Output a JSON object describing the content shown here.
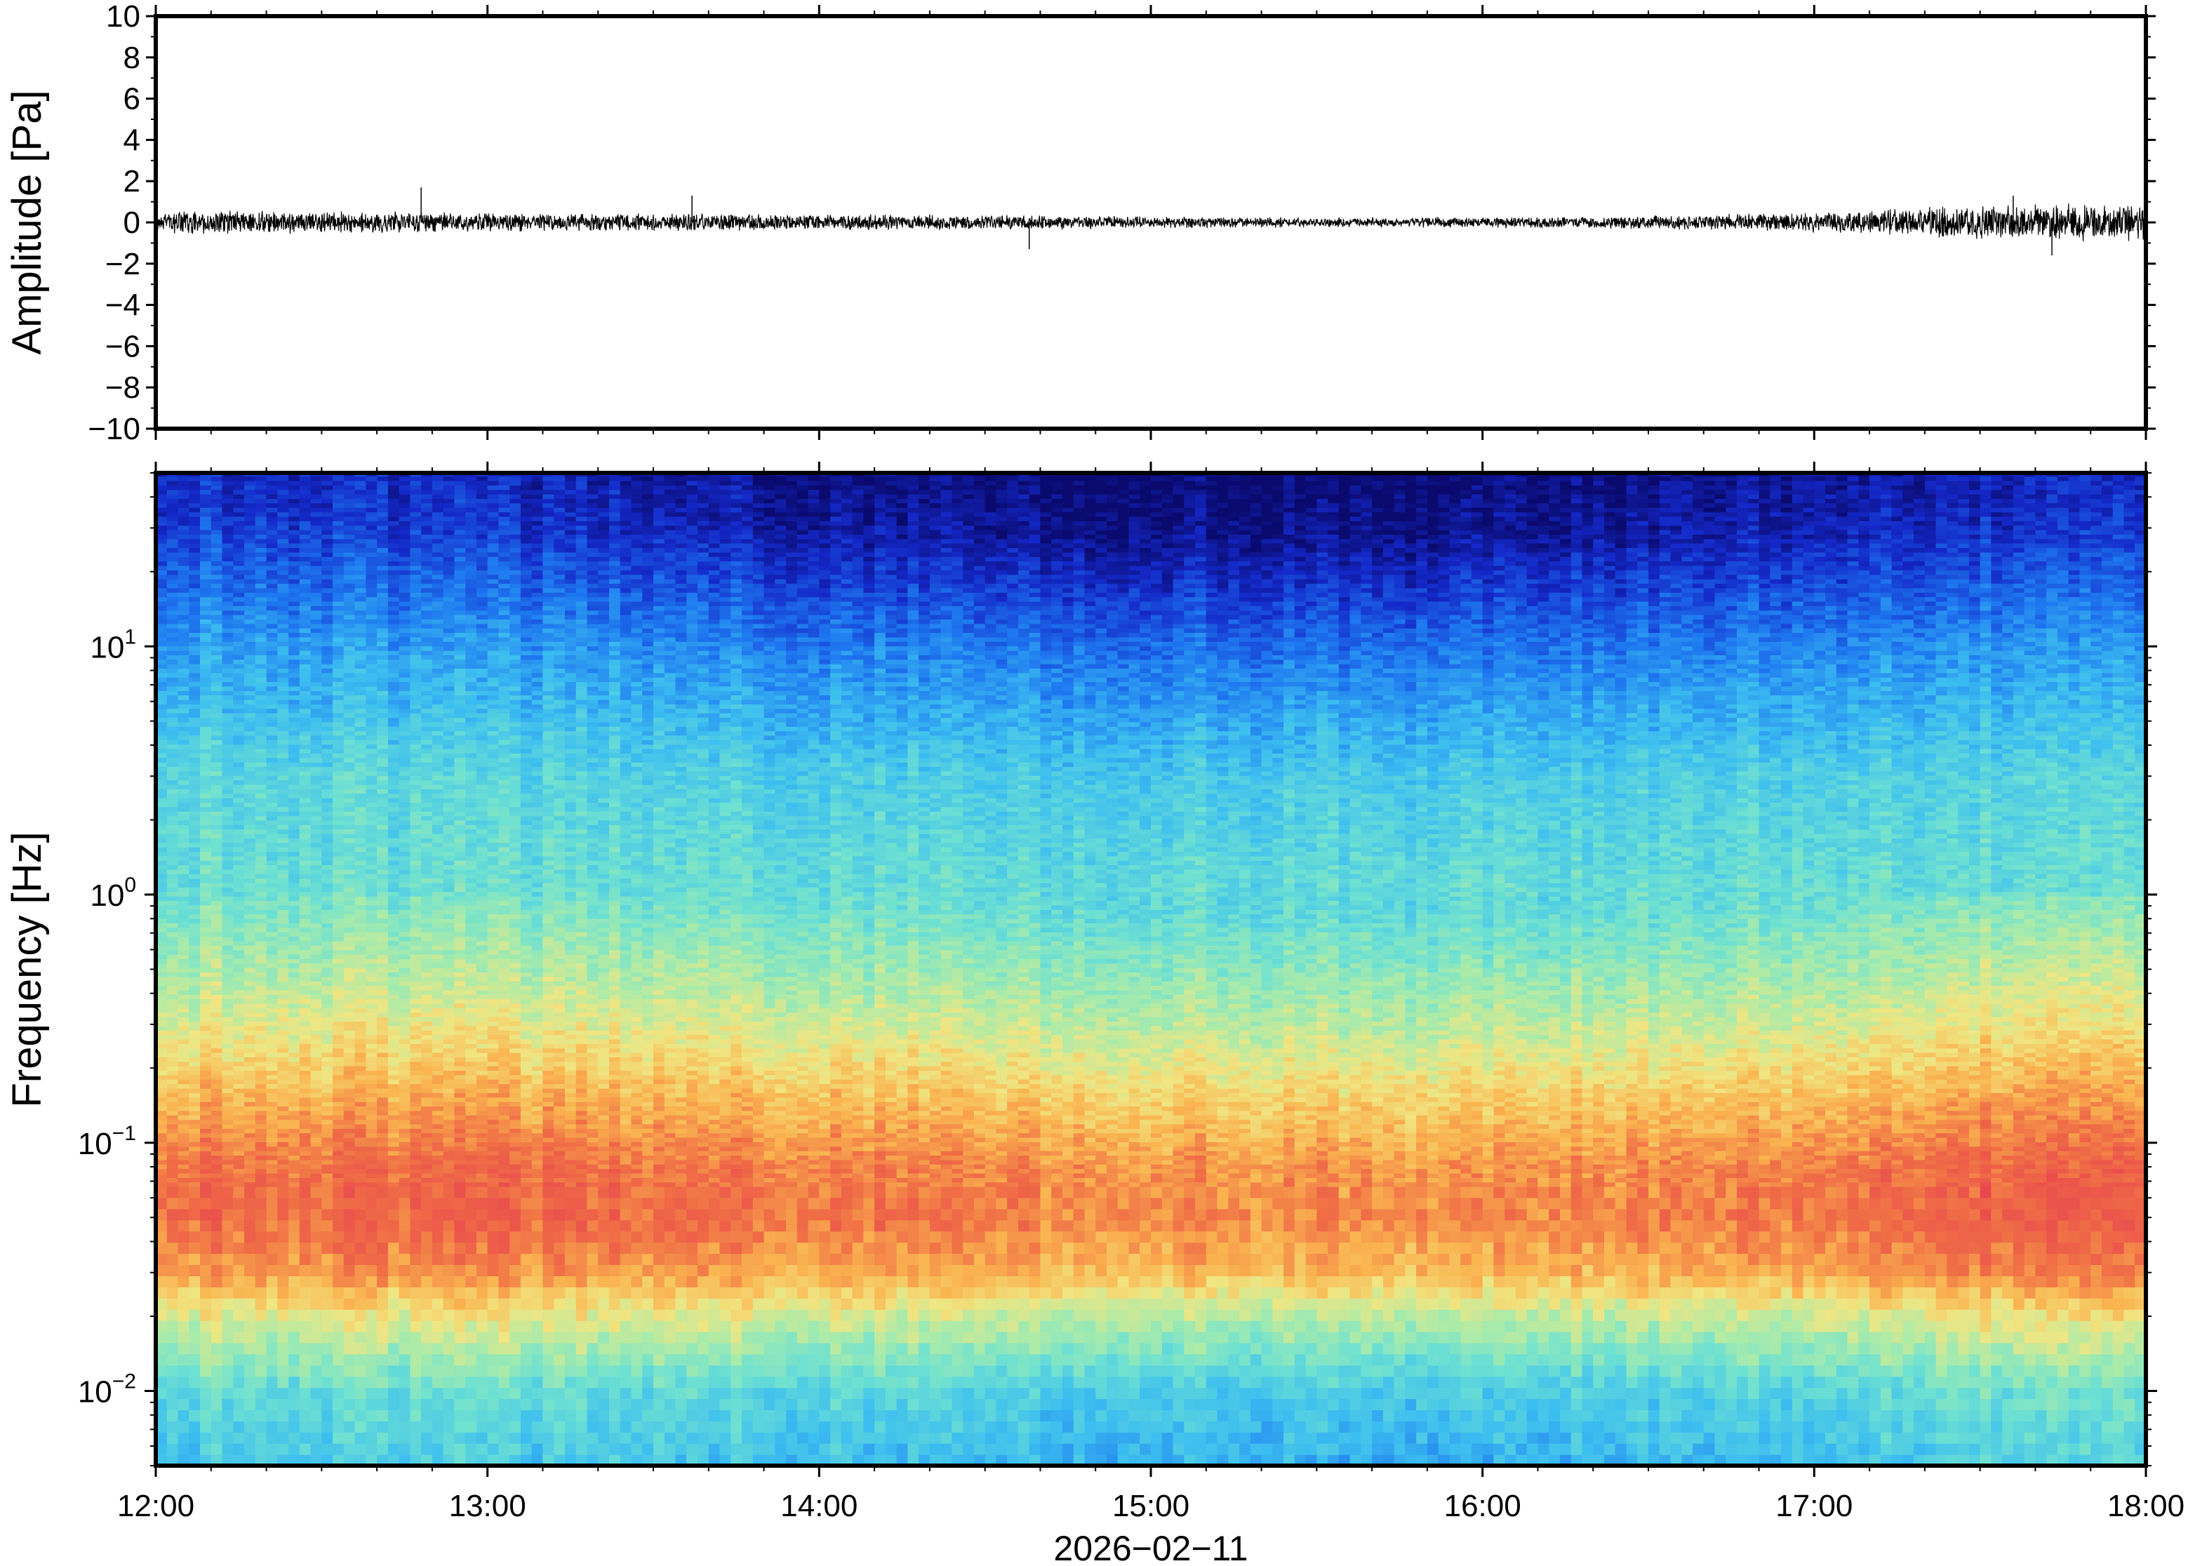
{
  "chart_data": [
    {
      "type": "line",
      "panel": "waveform",
      "title": "",
      "xlabel": "",
      "ylabel": "Amplitude [Pa]",
      "ylim": [
        -10,
        10
      ],
      "yticks": [
        10,
        8,
        6,
        4,
        2,
        0,
        -2,
        -4,
        -6,
        -8,
        -10
      ],
      "ytick_labels": [
        "10",
        "8",
        "6",
        "4",
        "2",
        "0",
        "−2",
        "−4",
        "−6",
        "−8",
        "−10"
      ],
      "xlim": [
        "12:00",
        "18:00"
      ],
      "grid": false,
      "line_color": "#000000",
      "envelope": {
        "x": [
          "12:00",
          "12:30",
          "13:00",
          "13:30",
          "14:00",
          "14:30",
          "15:00",
          "15:30",
          "16:00",
          "16:30",
          "17:00",
          "17:30",
          "18:00"
        ],
        "half_amplitude": [
          0.6,
          0.6,
          0.5,
          0.45,
          0.4,
          0.4,
          0.3,
          0.25,
          0.25,
          0.35,
          0.5,
          0.9,
          1.0
        ]
      },
      "peaks": [
        {
          "x": "12:48",
          "value": 1.7
        },
        {
          "x": "13:37",
          "value": 1.3
        },
        {
          "x": "14:38",
          "value": -1.3
        },
        {
          "x": "17:36",
          "value": 1.3
        },
        {
          "x": "17:43",
          "value": -1.6
        }
      ]
    },
    {
      "type": "heatmap",
      "panel": "spectrogram",
      "title": "",
      "xlabel": "2026−02−11",
      "ylabel": "Frequency [Hz]",
      "xlim": [
        "12:00",
        "18:00"
      ],
      "xticks": [
        "12:00",
        "13:00",
        "14:00",
        "15:00",
        "16:00",
        "17:00",
        "18:00"
      ],
      "ylim": [
        0.005,
        50
      ],
      "yscale": "log",
      "yticks": [
        0.01,
        0.1,
        1,
        10
      ],
      "ytick_labels": [
        {
          "base": "10",
          "exp": "−2"
        },
        {
          "base": "10",
          "exp": "−1"
        },
        {
          "base": "10",
          "exp": "0"
        },
        {
          "base": "10",
          "exp": "1"
        }
      ],
      "colormap": "jet",
      "color_scale": "relative power (0 = low, 1 = high)",
      "colorbar": false,
      "grid": false,
      "profile": {
        "frequency_hz": [
          0.005,
          0.01,
          0.02,
          0.03,
          0.05,
          0.08,
          0.15,
          0.3,
          1,
          3,
          10,
          20,
          30,
          50
        ],
        "level": [
          0.35,
          0.42,
          0.62,
          0.78,
          0.86,
          0.84,
          0.74,
          0.62,
          0.45,
          0.4,
          0.25,
          0.14,
          0.08,
          0.05
        ]
      },
      "time_adjustment": {
        "x": [
          "12:00",
          "13:00",
          "14:00",
          "15:00",
          "16:00",
          "17:00",
          "17:30",
          "18:00"
        ],
        "low_freq_offset": [
          0.02,
          0.03,
          0.0,
          -0.03,
          -0.04,
          0.0,
          0.05,
          0.06
        ],
        "high_freq_offset": [
          0.06,
          0.04,
          -0.02,
          -0.05,
          -0.05,
          0.0,
          0.03,
          0.05
        ]
      }
    }
  ]
}
